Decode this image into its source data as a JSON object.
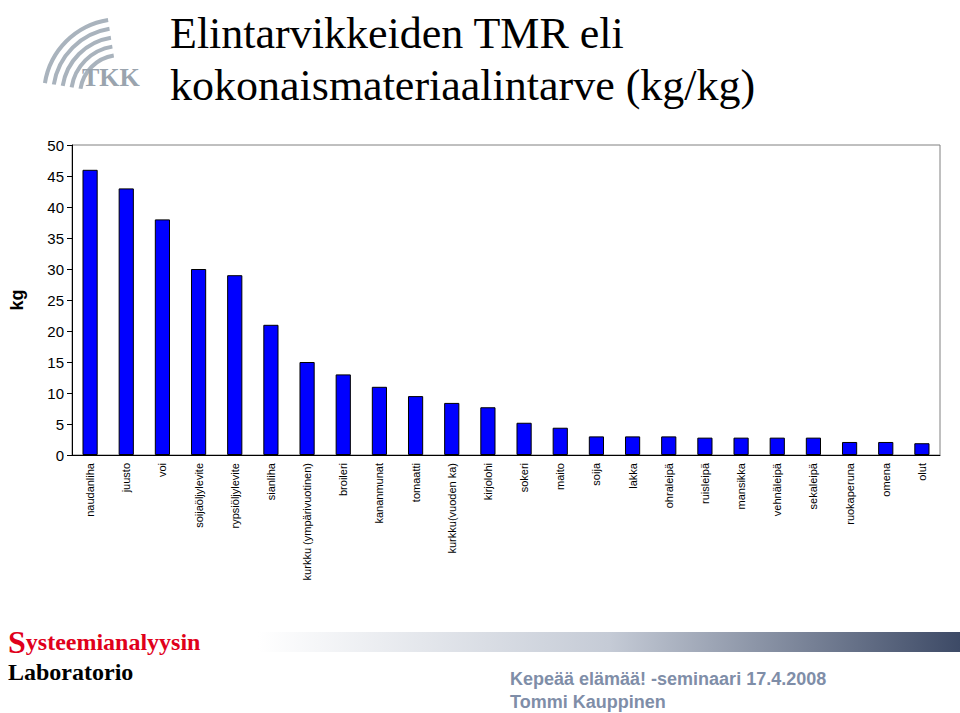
{
  "chart_data": {
    "type": "bar",
    "title": "Elintarvikkeiden TMR eli kokonaismateriaalintarve (kg/kg)",
    "ylabel": "kg",
    "categories": [
      "naudanliha",
      "juusto",
      "voi",
      "soijaöljylevite",
      "rypsiöljylevite",
      "sianliha",
      "kurkku (ympärivuotinen)",
      "broileri",
      "kananmunat",
      "tomaatti",
      "kurkku(vuoden ka)",
      "kirjolohi",
      "sokeri",
      "maito",
      "soija",
      "lakka",
      "ohraleipä",
      "ruisleipä",
      "mansikka",
      "vehnäleipä",
      "sekaleipä",
      "ruokaperuna",
      "omena",
      "olut"
    ],
    "values": [
      46,
      43,
      38,
      30,
      29,
      21,
      15,
      13,
      11,
      9.5,
      8.4,
      7.7,
      5.2,
      4.4,
      3,
      3,
      3,
      2.8,
      2.8,
      2.8,
      2.8,
      2.1,
      2.1,
      1.9
    ],
    "color": "#0000ff",
    "ylim": [
      0,
      50
    ],
    "yticks": [
      0,
      5,
      10,
      15,
      20,
      25,
      30,
      35,
      40,
      45,
      50
    ],
    "grid": false,
    "annotations": [
      "TKK",
      "Systeemianalyysin",
      "Laboratorio",
      "Kepeää elämää! -seminaari 17.4.2008",
      "Tommi Kauppinen"
    ]
  }
}
